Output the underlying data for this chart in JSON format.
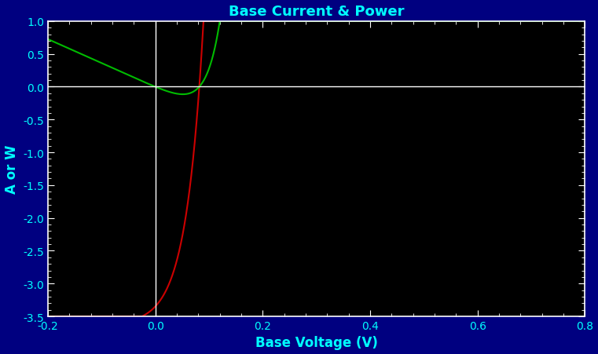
{
  "title": "Base Current & Power",
  "xlabel": "Base Voltage (V)",
  "ylabel": "A or W",
  "xlim": [
    -0.2,
    0.8
  ],
  "ylim": [
    -3.5,
    1.0
  ],
  "background_color": "#000000",
  "border_color": "#000080",
  "title_color": "#00FFFF",
  "axis_label_color": "#00FFFF",
  "tick_label_color": "#00FFFF",
  "tick_color": "#FFFFFF",
  "spine_color": "#FFFFFF",
  "zero_line_color": "#FFFFFF",
  "green_color": "#00BB00",
  "red_color": "#CC0000",
  "figure_bg": "#000080",
  "figsize": [
    7.61,
    4.52
  ],
  "dpi": 100
}
